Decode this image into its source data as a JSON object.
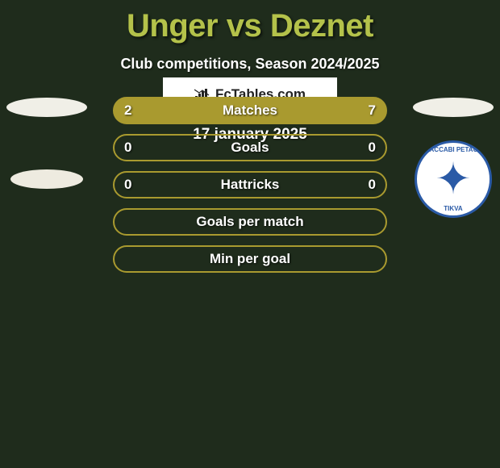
{
  "title": "Unger vs Deznet",
  "subtitle": "Club competitions, Season 2024/2025",
  "date": "17 january 2025",
  "colors": {
    "background": "#1f2c1c",
    "title": "#b4c24a",
    "text": "#ffffff",
    "bar_border": "#a99a2f",
    "bar_fill": "#a99a2f",
    "badge_blue": "#2a5aa6",
    "logo_bg": "#ffffff"
  },
  "bars": [
    {
      "label": "Matches",
      "left": "2",
      "right": "7",
      "left_pct": 22,
      "right_pct": 78,
      "filled": true
    },
    {
      "label": "Goals",
      "left": "0",
      "right": "0",
      "left_pct": 0,
      "right_pct": 0,
      "filled": false
    },
    {
      "label": "Hattricks",
      "left": "0",
      "right": "0",
      "left_pct": 0,
      "right_pct": 0,
      "filled": false
    },
    {
      "label": "Goals per match",
      "left": "",
      "right": "",
      "left_pct": 0,
      "right_pct": 0,
      "filled": false
    },
    {
      "label": "Min per goal",
      "left": "",
      "right": "",
      "left_pct": 0,
      "right_pct": 0,
      "filled": false
    }
  ],
  "logo_text": "FcTables.com",
  "badge_right": {
    "text_top": "MACCABI PETACH",
    "text_bottom": "TIKVA"
  }
}
